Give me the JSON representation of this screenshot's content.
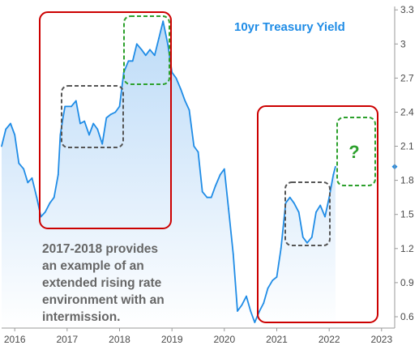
{
  "chart_data": {
    "type": "area",
    "title": "10yr Treasury Yield",
    "xlabel": "",
    "ylabel": "",
    "x_ticks": [
      "2016",
      "2017",
      "2018",
      "2019",
      "2020",
      "2021",
      "2022",
      "2023"
    ],
    "y_ticks": [
      "3.3",
      "3",
      "2.7",
      "2.4",
      "2.1",
      "1.8",
      "1.5",
      "1.2",
      "0.9",
      "0.6"
    ],
    "xlim": [
      2015.75,
      2023.25
    ],
    "ylim": [
      0.5,
      3.33
    ],
    "grid": false,
    "y_axis_side": "right",
    "colors": {
      "line": "#1f8ce6",
      "area_fill": "#cfe4f8",
      "red_box": "#cc0000",
      "gray_box": "#555555",
      "green_box": "#2ca02c"
    },
    "series": [
      {
        "x": [
          2015.75,
          2015.83,
          2015.92,
          2016.0,
          2016.08,
          2016.17,
          2016.25,
          2016.33,
          2016.42,
          2016.5,
          2016.58,
          2016.67,
          2016.75,
          2016.83,
          2016.87,
          2016.92,
          2016.96,
          2017.0,
          2017.08,
          2017.17,
          2017.25,
          2017.33,
          2017.42,
          2017.5,
          2017.58,
          2017.67,
          2017.75,
          2017.83,
          2017.92,
          2018.0,
          2018.08,
          2018.17,
          2018.25,
          2018.33,
          2018.42,
          2018.5,
          2018.58,
          2018.67,
          2018.75,
          2018.83,
          2018.92,
          2019.0,
          2019.08,
          2019.17,
          2019.25,
          2019.33,
          2019.42,
          2019.5,
          2019.58,
          2019.67,
          2019.75,
          2019.83,
          2019.92,
          2020.0,
          2020.08,
          2020.17,
          2020.25,
          2020.33,
          2020.42,
          2020.5,
          2020.58,
          2020.67,
          2020.75,
          2020.83,
          2020.92,
          2021.0,
          2021.08,
          2021.17,
          2021.25,
          2021.33,
          2021.42,
          2021.5,
          2021.58,
          2021.67,
          2021.75,
          2021.83,
          2021.92,
          2022.0,
          2022.08,
          2022.12
        ],
        "values": [
          2.1,
          2.25,
          2.3,
          2.2,
          1.95,
          1.9,
          1.78,
          1.82,
          1.65,
          1.48,
          1.52,
          1.6,
          1.65,
          1.85,
          2.2,
          2.35,
          2.45,
          2.45,
          2.45,
          2.5,
          2.3,
          2.32,
          2.2,
          2.3,
          2.25,
          2.12,
          2.35,
          2.38,
          2.4,
          2.45,
          2.75,
          2.85,
          2.85,
          3.0,
          2.95,
          2.9,
          2.95,
          2.9,
          3.05,
          3.2,
          3.0,
          2.75,
          2.7,
          2.6,
          2.5,
          2.42,
          2.1,
          2.05,
          1.7,
          1.65,
          1.65,
          1.75,
          1.85,
          1.9,
          1.55,
          1.15,
          0.65,
          0.7,
          0.78,
          0.65,
          0.55,
          0.65,
          0.72,
          0.85,
          0.92,
          0.95,
          1.2,
          1.6,
          1.65,
          1.6,
          1.52,
          1.3,
          1.25,
          1.3,
          1.52,
          1.58,
          1.48,
          1.65,
          1.85,
          1.92
        ]
      }
    ],
    "annotations": {
      "body_text_lines": [
        "2017-2018 provides",
        "an example of an",
        "extended rising rate",
        "environment with an",
        "intermission."
      ],
      "question_mark": "?"
    }
  }
}
